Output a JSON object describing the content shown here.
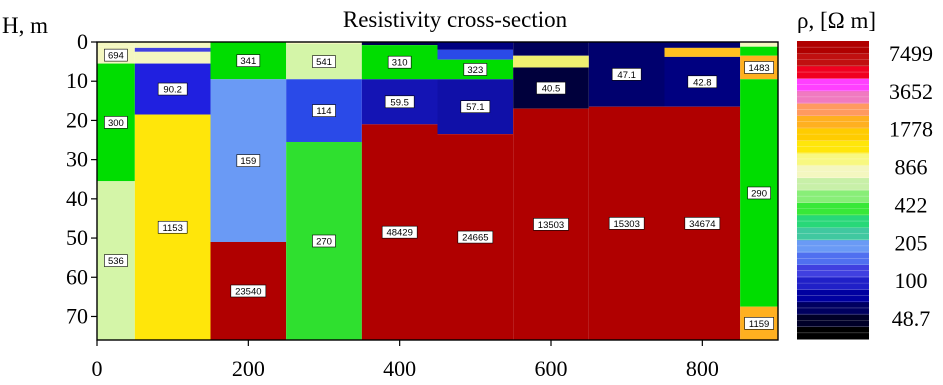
{
  "chart_data": {
    "type": "heatmap",
    "title": "Resistivity cross-section",
    "ylabel": "H, m",
    "colorbar_label": "ρ, [Ω m]",
    "xlim": [
      0,
      900
    ],
    "ylim": [
      0,
      76
    ],
    "x_ticks": [
      0,
      200,
      400,
      600,
      800
    ],
    "y_ticks": [
      0,
      10,
      20,
      30,
      40,
      50,
      60,
      70
    ],
    "colorbar_ticks": [
      "7499",
      "3652",
      "1778",
      "866",
      "422",
      "205",
      "100",
      "48.7"
    ],
    "colorbar_colors": [
      "#000000",
      "#000028",
      "#000060",
      "#0000a0",
      "#2020c8",
      "#4040e0",
      "#5070f0",
      "#6a9af5",
      "#40c8a0",
      "#28d878",
      "#38e838",
      "#88ee78",
      "#c8f0a8",
      "#f4f7c0",
      "#f8f880",
      "#ffe60a",
      "#ffcc00",
      "#ffb020",
      "#ff9a60",
      "#f07ac0",
      "#ff40ff",
      "#f00020",
      "#c01010",
      "#b00000"
    ],
    "columns": [
      {
        "x": [
          0,
          50
        ],
        "layers": [
          {
            "top": 0,
            "bottom": 1.2,
            "color": "#f4f7c0"
          },
          {
            "top": 1.2,
            "bottom": 5.5,
            "value": "694",
            "color": "#f4f7c0"
          },
          {
            "top": 5.5,
            "bottom": 35.5,
            "value": "300",
            "color": "#00dd00"
          },
          {
            "top": 35.5,
            "bottom": 76,
            "value": "536",
            "color": "#d4f5a8"
          }
        ]
      },
      {
        "x": [
          50,
          150
        ],
        "layers": [
          {
            "top": 0,
            "bottom": 1.5,
            "color": "#f4f7c0"
          },
          {
            "top": 1.5,
            "bottom": 2.5,
            "color": "#4040e0"
          },
          {
            "top": 2.5,
            "bottom": 5.5,
            "color": "#f4f7c0"
          },
          {
            "top": 5.5,
            "bottom": 18.5,
            "value": "90.2",
            "color": "#2020e0"
          },
          {
            "top": 18.5,
            "bottom": 76,
            "value": "1153",
            "color": "#ffe60a"
          }
        ]
      },
      {
        "x": [
          150,
          250
        ],
        "layers": [
          {
            "top": 0,
            "bottom": 9.5,
            "value": "341",
            "color": "#00dd00"
          },
          {
            "top": 9.5,
            "bottom": 51,
            "value": "159",
            "color": "#6a9af5"
          },
          {
            "top": 51,
            "bottom": 76,
            "value": "23540",
            "color": "#b00000"
          }
        ]
      },
      {
        "x": [
          250,
          350
        ],
        "layers": [
          {
            "top": 0,
            "bottom": 0.5,
            "color": "#f4f7c0"
          },
          {
            "top": 0.5,
            "bottom": 9.5,
            "value": "541",
            "color": "#d4f5a8"
          },
          {
            "top": 9.5,
            "bottom": 25.5,
            "value": "114",
            "color": "#2a4ae8"
          },
          {
            "top": 25.5,
            "bottom": 76,
            "value": "270",
            "color": "#2fe02f"
          }
        ]
      },
      {
        "x": [
          350,
          450
        ],
        "layers": [
          {
            "top": 0,
            "bottom": 0.8,
            "color": "#000050"
          },
          {
            "top": 0.8,
            "bottom": 9.5,
            "value": "310",
            "color": "#00dd00"
          },
          {
            "top": 9.5,
            "bottom": 21,
            "value": "59.5",
            "color": "#1414b4"
          },
          {
            "top": 21,
            "bottom": 76,
            "value": "48429",
            "color": "#b00000"
          }
        ]
      },
      {
        "x": [
          450,
          550
        ],
        "layers": [
          {
            "top": 0,
            "bottom": 2,
            "color": "#000080"
          },
          {
            "top": 2,
            "bottom": 4.5,
            "color": "#2a4ae8"
          },
          {
            "top": 4.5,
            "bottom": 9.5,
            "value": "323",
            "color": "#00dd00"
          },
          {
            "top": 9.5,
            "bottom": 23.5,
            "value": "57.1",
            "color": "#1010a8"
          },
          {
            "top": 23.5,
            "bottom": 76,
            "value": "24665",
            "color": "#b00000"
          }
        ]
      },
      {
        "x": [
          550,
          650
        ],
        "layers": [
          {
            "top": 0,
            "bottom": 3.5,
            "color": "#00005a"
          },
          {
            "top": 3.5,
            "bottom": 6.5,
            "color": "#f0f070"
          },
          {
            "top": 6.5,
            "bottom": 17,
            "value": "40.5",
            "color": "#00003c"
          },
          {
            "top": 17,
            "bottom": 76,
            "value": "13503",
            "color": "#b00000"
          }
        ]
      },
      {
        "x": [
          650,
          750
        ],
        "layers": [
          {
            "top": 0,
            "bottom": 16.5,
            "value": "47.1",
            "color": "#00006e"
          },
          {
            "top": 16.5,
            "bottom": 76,
            "value": "15303",
            "color": "#b00000"
          }
        ]
      },
      {
        "x": [
          750,
          850
        ],
        "layers": [
          {
            "top": 0,
            "bottom": 1.5,
            "color": "#00006e"
          },
          {
            "top": 1.5,
            "bottom": 3.8,
            "color": "#ffc020"
          },
          {
            "top": 3.8,
            "bottom": 16.5,
            "value": "42.8",
            "color": "#000080"
          },
          {
            "top": 16.5,
            "bottom": 76,
            "value": "34674",
            "color": "#b00000"
          }
        ]
      },
      {
        "x": [
          850,
          900
        ],
        "layers": [
          {
            "top": 0,
            "bottom": 1.2,
            "color": "#f4f7c0"
          },
          {
            "top": 1.2,
            "bottom": 3.5,
            "color": "#00dd00"
          },
          {
            "top": 3.5,
            "bottom": 9.5,
            "value": "1483",
            "color": "#ffb020"
          },
          {
            "top": 9.5,
            "bottom": 67.5,
            "value": "290",
            "color": "#00dd00"
          },
          {
            "top": 67.5,
            "bottom": 76,
            "value": "1159",
            "color": "#ffb020"
          }
        ]
      }
    ]
  }
}
